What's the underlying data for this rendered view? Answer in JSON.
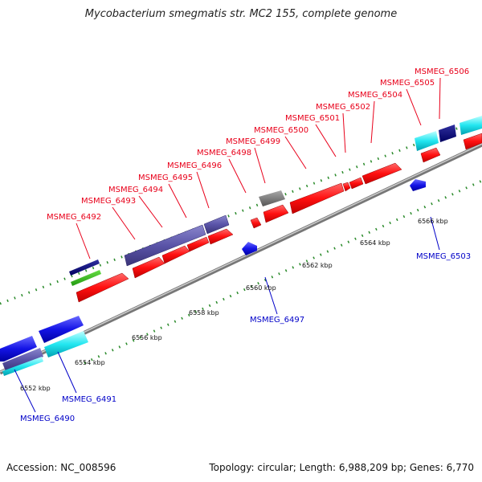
{
  "title": "Mycobacterium smegmatis str. MC2 155, complete genome",
  "accession": "Accession: NC_008596",
  "summary": "Topology: circular; Length: 6,988,209 bp; Genes: 6,770",
  "colors": {
    "forward_cds": "#ff1a1a",
    "reverse_cds": "#1a1aee",
    "backbone": "#888888",
    "gc_tick": "#228b22",
    "forward_label": "#e8001a",
    "reverse_label": "#0000c8"
  },
  "kbp_ticks": [
    "6552 kbp",
    "6554 kbp",
    "6556 kbp",
    "6558 kbp",
    "6560 kbp",
    "6562 kbp",
    "6564 kbp",
    "6566 kbp"
  ],
  "forward_genes": [
    "MSMEG_6492",
    "MSMEG_6493",
    "MSMEG_6494",
    "MSMEG_6495",
    "MSMEG_6496",
    "MSMEG_6498",
    "MSMEG_6499",
    "MSMEG_6500",
    "MSMEG_6501",
    "MSMEG_6502",
    "MSMEG_6504",
    "MSMEG_6505",
    "MSMEG_6506"
  ],
  "reverse_genes": [
    "MSMEG_6490",
    "MSMEG_6491",
    "MSMEG_6497",
    "MSMEG_6503"
  ]
}
